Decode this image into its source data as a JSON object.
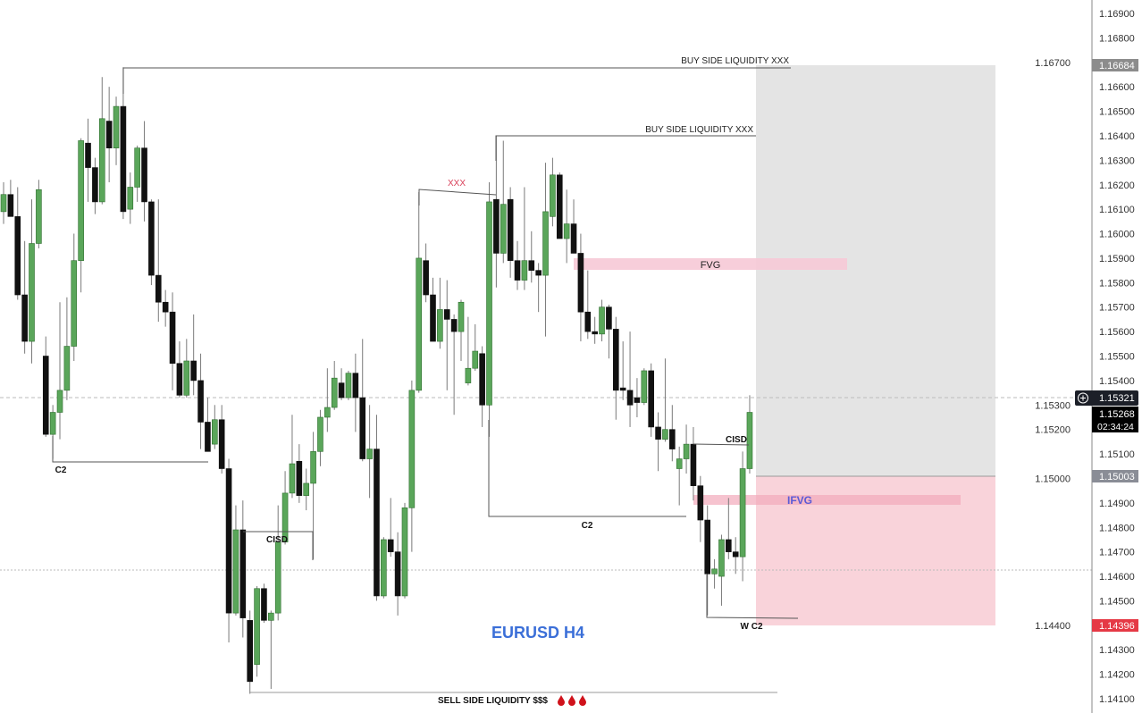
{
  "chart_data": {
    "type": "candlestick",
    "title": "EURUSD H4",
    "symbol": "EURUSD",
    "timeframe": "H4",
    "ylim": [
      1.1405,
      1.1695
    ],
    "grid": false,
    "yticks": [
      "1.16900",
      "1.16800",
      "1.16700",
      "1.16600",
      "1.16500",
      "1.16400",
      "1.16300",
      "1.16200",
      "1.16100",
      "1.16000",
      "1.15900",
      "1.15800",
      "1.15700",
      "1.15600",
      "1.15500",
      "1.15400",
      "1.15300",
      "1.15200",
      "1.15100",
      "1.15000",
      "1.14900",
      "1.14800",
      "1.14700",
      "1.14600",
      "1.14500",
      "1.14400",
      "1.14300",
      "1.14200",
      "1.14100"
    ],
    "colors": {
      "up": "#5aa65a",
      "up_border": "#2f6e2f",
      "down": "#111111",
      "wick": "#7a7a7a",
      "title": "#3b6fd8",
      "ifvg_label": "#5b5bd6",
      "xxx_label": "#d9415a",
      "fvg_zone": "#f6c9d6",
      "target_zone": "#e4e4e4",
      "stop_zone": "#f9d3da"
    },
    "ohlc": [
      [
        1.1609,
        1.1621,
        1.1604,
        1.1616
      ],
      [
        1.1616,
        1.1622,
        1.1607,
        1.1607
      ],
      [
        1.1607,
        1.1619,
        1.1573,
        1.1575
      ],
      [
        1.1575,
        1.1597,
        1.1551,
        1.1556
      ],
      [
        1.1556,
        1.1614,
        1.1547,
        1.1596
      ],
      [
        1.1596,
        1.1622,
        1.1594,
        1.1618
      ],
      [
        1.155,
        1.1558,
        1.1517,
        1.1518
      ],
      [
        1.1518,
        1.153,
        1.1508,
        1.1527
      ],
      [
        1.1527,
        1.1572,
        1.1516,
        1.1536
      ],
      [
        1.1536,
        1.1574,
        1.1532,
        1.1554
      ],
      [
        1.1554,
        1.16,
        1.1548,
        1.1589
      ],
      [
        1.1589,
        1.1639,
        1.1576,
        1.1638
      ],
      [
        1.1637,
        1.1647,
        1.1613,
        1.1627
      ],
      [
        1.1627,
        1.1631,
        1.1608,
        1.1613
      ],
      [
        1.1613,
        1.1664,
        1.1612,
        1.1647
      ],
      [
        1.1646,
        1.166,
        1.1621,
        1.1635
      ],
      [
        1.1635,
        1.1656,
        1.1628,
        1.1652
      ],
      [
        1.1652,
        1.1668,
        1.1606,
        1.1609
      ],
      [
        1.161,
        1.1625,
        1.1604,
        1.1619
      ],
      [
        1.1619,
        1.1636,
        1.1613,
        1.1635
      ],
      [
        1.1635,
        1.1646,
        1.1605,
        1.1613
      ],
      [
        1.1613,
        1.1614,
        1.1579,
        1.1583
      ],
      [
        1.1583,
        1.1614,
        1.1564,
        1.1572
      ],
      [
        1.1572,
        1.1577,
        1.1562,
        1.1568
      ],
      [
        1.1568,
        1.1576,
        1.1536,
        1.1547
      ],
      [
        1.1547,
        1.1556,
        1.1533,
        1.1534
      ],
      [
        1.1534,
        1.1557,
        1.1533,
        1.1548
      ],
      [
        1.1548,
        1.1567,
        1.1534,
        1.154
      ],
      [
        1.154,
        1.1551,
        1.1512,
        1.1523
      ],
      [
        1.1523,
        1.1533,
        1.1511,
        1.1511
      ],
      [
        1.1514,
        1.153,
        1.1512,
        1.1524
      ],
      [
        1.1524,
        1.153,
        1.1502,
        1.1504
      ],
      [
        1.1504,
        1.1508,
        1.1433,
        1.1445
      ],
      [
        1.1445,
        1.1489,
        1.1444,
        1.1479
      ],
      [
        1.1479,
        1.1491,
        1.1435,
        1.1443
      ],
      [
        1.1442,
        1.1446,
        1.1412,
        1.1417
      ],
      [
        1.1424,
        1.1456,
        1.1419,
        1.1455
      ],
      [
        1.1455,
        1.1457,
        1.1441,
        1.1442
      ],
      [
        1.1442,
        1.1446,
        1.1414,
        1.1445
      ],
      [
        1.1445,
        1.1489,
        1.1442,
        1.1474
      ],
      [
        1.1474,
        1.1503,
        1.1473,
        1.1494
      ],
      [
        1.1494,
        1.1526,
        1.1492,
        1.1506
      ],
      [
        1.1507,
        1.1514,
        1.149,
        1.1493
      ],
      [
        1.1493,
        1.1504,
        1.1487,
        1.1498
      ],
      [
        1.1498,
        1.1519,
        1.1467,
        1.1511
      ],
      [
        1.1511,
        1.1528,
        1.1505,
        1.1525
      ],
      [
        1.1525,
        1.1545,
        1.1519,
        1.1529
      ],
      [
        1.1529,
        1.1548,
        1.1528,
        1.1541
      ],
      [
        1.1539,
        1.1545,
        1.1532,
        1.1533
      ],
      [
        1.1533,
        1.1544,
        1.1532,
        1.1543
      ],
      [
        1.1543,
        1.1551,
        1.1519,
        1.1533
      ],
      [
        1.1533,
        1.1557,
        1.1507,
        1.1508
      ],
      [
        1.1508,
        1.153,
        1.1492,
        1.1512
      ],
      [
        1.1512,
        1.1526,
        1.145,
        1.1452
      ],
      [
        1.1452,
        1.1476,
        1.1451,
        1.1475
      ],
      [
        1.1475,
        1.1492,
        1.1468,
        1.147
      ],
      [
        1.147,
        1.1478,
        1.1444,
        1.1452
      ],
      [
        1.1452,
        1.149,
        1.1451,
        1.1488
      ],
      [
        1.1488,
        1.154,
        1.147,
        1.1536
      ],
      [
        1.1536,
        1.1617,
        1.1535,
        1.159
      ],
      [
        1.1589,
        1.1596,
        1.1572,
        1.1575
      ],
      [
        1.1575,
        1.1582,
        1.1556,
        1.1556
      ],
      [
        1.1556,
        1.1582,
        1.1553,
        1.1569
      ],
      [
        1.1569,
        1.1581,
        1.1536,
        1.1565
      ],
      [
        1.1565,
        1.1567,
        1.1526,
        1.156
      ],
      [
        1.156,
        1.1573,
        1.1548,
        1.1572
      ],
      [
        1.1539,
        1.1566,
        1.1538,
        1.1545
      ],
      [
        1.1545,
        1.1563,
        1.1544,
        1.1552
      ],
      [
        1.1551,
        1.1554,
        1.1521,
        1.153
      ],
      [
        1.153,
        1.1621,
        1.1517,
        1.1613
      ],
      [
        1.1614,
        1.164,
        1.1578,
        1.1592
      ],
      [
        1.1592,
        1.1638,
        1.1588,
        1.1612
      ],
      [
        1.1614,
        1.1619,
        1.1582,
        1.1589
      ],
      [
        1.1589,
        1.1597,
        1.1577,
        1.1581
      ],
      [
        1.1581,
        1.1619,
        1.1577,
        1.1589
      ],
      [
        1.1589,
        1.1601,
        1.158,
        1.1585
      ],
      [
        1.1585,
        1.1588,
        1.1568,
        1.1583
      ],
      [
        1.1583,
        1.1629,
        1.1558,
        1.1609
      ],
      [
        1.1607,
        1.1631,
        1.1603,
        1.1624
      ],
      [
        1.1624,
        1.1625,
        1.1598,
        1.1598
      ],
      [
        1.1598,
        1.1618,
        1.1588,
        1.1604
      ],
      [
        1.1604,
        1.1614,
        1.1592,
        1.1592
      ],
      [
        1.1592,
        1.16,
        1.1556,
        1.1568
      ],
      [
        1.1568,
        1.1585,
        1.1557,
        1.156
      ],
      [
        1.156,
        1.1566,
        1.1555,
        1.1559
      ],
      [
        1.1559,
        1.1573,
        1.1556,
        1.157
      ],
      [
        1.157,
        1.1571,
        1.1549,
        1.1561
      ],
      [
        1.1561,
        1.1566,
        1.1524,
        1.1536
      ],
      [
        1.1537,
        1.1556,
        1.1532,
        1.1536
      ],
      [
        1.1536,
        1.156,
        1.1521,
        1.153
      ],
      [
        1.1533,
        1.1541,
        1.1525,
        1.1531
      ],
      [
        1.1531,
        1.1545,
        1.153,
        1.1544
      ],
      [
        1.1544,
        1.1547,
        1.1517,
        1.1521
      ],
      [
        1.1521,
        1.1527,
        1.1503,
        1.1516
      ],
      [
        1.1516,
        1.1549,
        1.1515,
        1.152
      ],
      [
        1.152,
        1.153,
        1.1507,
        1.1512
      ],
      [
        1.1504,
        1.1513,
        1.1489,
        1.1508
      ],
      [
        1.1508,
        1.1522,
        1.1502,
        1.1514
      ],
      [
        1.1514,
        1.1521,
        1.1491,
        1.1497
      ],
      [
        1.1497,
        1.1501,
        1.1474,
        1.1483
      ],
      [
        1.1483,
        1.1489,
        1.1444,
        1.1461
      ],
      [
        1.1461,
        1.1467,
        1.1455,
        1.1463
      ],
      [
        1.146,
        1.1477,
        1.1448,
        1.1475
      ],
      [
        1.1475,
        1.1492,
        1.1467,
        1.147
      ],
      [
        1.147,
        1.1476,
        1.1461,
        1.1468
      ],
      [
        1.1468,
        1.1511,
        1.1458,
        1.1504
      ],
      [
        1.1504,
        1.1534,
        1.1502,
        1.1527
      ]
    ],
    "annotations": {
      "bsl_top": "BUY SIDE LIQUIDITY XXX",
      "bsl_mid": "BUY SIDE LIQUIDITY XXX",
      "xxx": "XXX",
      "fvg": "FVG",
      "ifvg": "IFVG",
      "c2_left": "C2",
      "cisd_left": "CISD",
      "c2_mid": "C2",
      "cisd_right": "CISD",
      "w_c2": "W C2",
      "ssl": "SELL SIDE LIQUIDITY $$$",
      "ssl_icons": "drop-icon x3"
    },
    "price_badges": {
      "target": "1.16684",
      "crosshair": "1.15321",
      "last_price": "1.15268",
      "countdown": "02:34:24",
      "entry": "1.15003",
      "stop": "1.14396"
    }
  }
}
